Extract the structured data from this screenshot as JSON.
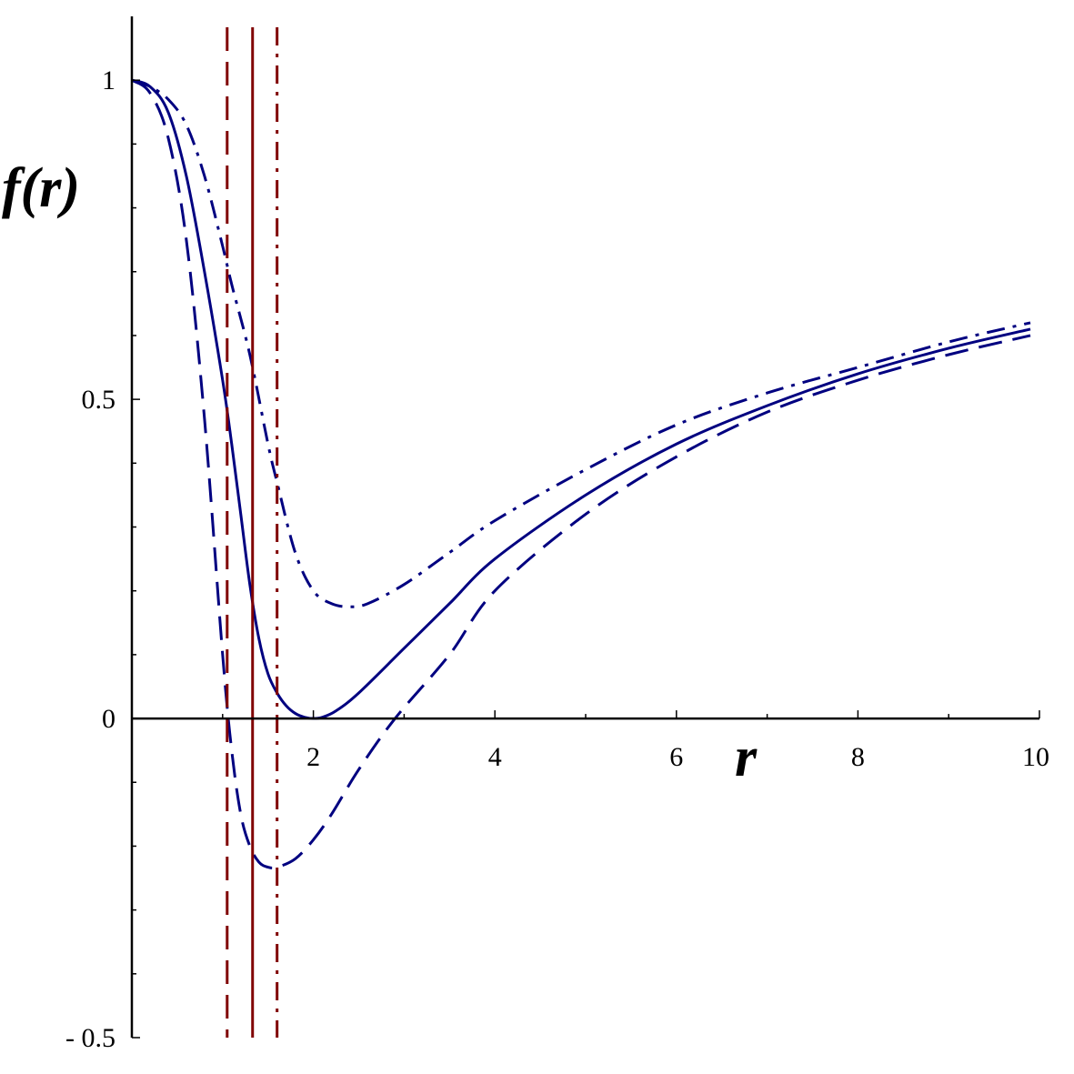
{
  "chart_data": {
    "type": "line",
    "xlabel": "r",
    "ylabel": "f(r)",
    "xlim": [
      0,
      10
    ],
    "ylim": [
      -0.5,
      1.1
    ],
    "xticks": [
      {
        "value": 2,
        "label": "2"
      },
      {
        "value": 4,
        "label": "4"
      },
      {
        "value": 6,
        "label": "6"
      },
      {
        "value": 8,
        "label": "8"
      },
      {
        "value": 10,
        "label": "10"
      }
    ],
    "yticks": [
      {
        "value": 1,
        "label": "1"
      },
      {
        "value": 0.5,
        "label": "0.5"
      },
      {
        "value": 0,
        "label": "0"
      },
      {
        "value": -0.5,
        "label": "- 0.5"
      }
    ],
    "grid": false,
    "legend": "none",
    "series": [
      {
        "style": "dashed",
        "color": "#000080",
        "x": [
          0,
          0.2,
          0.4,
          0.6,
          0.8,
          1.0,
          1.1,
          1.2,
          1.3,
          1.4,
          1.5,
          1.6,
          1.8,
          2.0,
          2.2,
          2.5,
          2.9,
          3.5,
          4.0,
          5.0,
          6.0,
          7.0,
          8.0,
          9.0,
          9.9
        ],
        "y": [
          1.0,
          0.98,
          0.91,
          0.75,
          0.47,
          0.1,
          -0.05,
          -0.15,
          -0.2,
          -0.225,
          -0.233,
          -0.233,
          -0.22,
          -0.19,
          -0.15,
          -0.08,
          0.0,
          0.1,
          0.2,
          0.32,
          0.41,
          0.48,
          0.53,
          0.57,
          0.6
        ]
      },
      {
        "style": "solid",
        "color": "#000080",
        "x": [
          0,
          0.2,
          0.4,
          0.6,
          0.8,
          1.0,
          1.1,
          1.2,
          1.3,
          1.4,
          1.5,
          1.6,
          1.7,
          1.8,
          1.9,
          2.0,
          2.1,
          2.25,
          2.5,
          3.0,
          3.5,
          4.0,
          5.0,
          6.0,
          7.0,
          8.0,
          9.0,
          9.9
        ],
        "y": [
          1.0,
          0.99,
          0.95,
          0.85,
          0.7,
          0.53,
          0.43,
          0.32,
          0.21,
          0.125,
          0.07,
          0.04,
          0.02,
          0.008,
          0.002,
          0.0,
          0.002,
          0.012,
          0.04,
          0.11,
          0.18,
          0.25,
          0.35,
          0.43,
          0.49,
          0.54,
          0.58,
          0.61
        ]
      },
      {
        "style": "dashdot",
        "color": "#000080",
        "x": [
          0,
          0.2,
          0.4,
          0.6,
          0.8,
          1.0,
          1.1,
          1.3,
          1.5,
          1.6,
          1.8,
          2.0,
          2.2,
          2.4,
          2.6,
          3.0,
          3.5,
          4.0,
          5.0,
          6.0,
          7.0,
          8.0,
          9.0,
          9.9
        ],
        "y": [
          1.0,
          0.99,
          0.97,
          0.93,
          0.85,
          0.74,
          0.68,
          0.57,
          0.43,
          0.37,
          0.26,
          0.2,
          0.18,
          0.175,
          0.18,
          0.21,
          0.26,
          0.31,
          0.39,
          0.46,
          0.51,
          0.55,
          0.59,
          0.62
        ]
      }
    ],
    "vertical_lines": [
      {
        "x": 1.05,
        "style": "dashed",
        "color": "#800000"
      },
      {
        "x": 1.33,
        "style": "solid",
        "color": "#800000"
      },
      {
        "x": 1.6,
        "style": "dashdot",
        "color": "#800000"
      }
    ]
  }
}
